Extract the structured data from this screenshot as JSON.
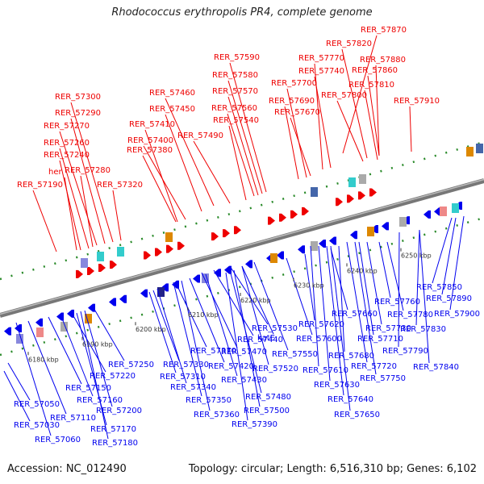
{
  "title": "Rhodococcus erythropolis PR4, complete genome",
  "footer": {
    "accession": "Accession: NC_012490",
    "summary": "Topology: circular; Length: 6,516,310 bp; Genes: 6,102"
  },
  "colors": {
    "forward": "#ee0000",
    "reverse": "#0000ee",
    "backbone": "#808080"
  },
  "ticks": [
    "6180 kbp",
    "6190 kbp",
    "6200 kbp",
    "6210 kbp",
    "6220 kbp",
    "6230 kbp",
    "6240 kbp",
    "6250 kbp"
  ],
  "forward_labels": [
    "RER_57870",
    "RER_57820",
    "RER_57880",
    "RER_57590",
    "RER_57770",
    "RER_57860",
    "RER_57580",
    "RER_57740",
    "RER_57700",
    "RER_57810",
    "RER_57570",
    "RER_57800",
    "RER_57460",
    "RER_57560",
    "RER_57690",
    "RER_57910",
    "RER_57300",
    "RER_57450",
    "RER_57540",
    "RER_57670",
    "RER_57290",
    "RER_57410",
    "RER_57270",
    "RER_57490",
    "RER_57400",
    "RER_57260",
    "RER_57380",
    "RER_57240",
    "RER_57280",
    "her",
    "RER_57190",
    "RER_57320"
  ],
  "reverse_labels": [
    "RER_57850",
    "RER_57890",
    "RER_57900",
    "RER_57760",
    "RER_57780",
    "RER_57660",
    "RER_57830",
    "RER_57620",
    "RER_57730",
    "RER_57710",
    "RER_57530",
    "RER_57790",
    "RER_57600",
    "RER_57370",
    "RER_57440",
    "katE",
    "RER_57550",
    "RER_57680",
    "RER_57250",
    "RER_57330",
    "RER_57470",
    "RER_57420",
    "RER_57610",
    "RER_57720",
    "RER_57840",
    "RER_57220",
    "RER_57310",
    "RER_57520",
    "RER_57630",
    "RER_57750",
    "RER_57340",
    "RER_57430",
    "RER_57150",
    "RER_57160",
    "RER_57480",
    "RER_57640",
    "RER_57350",
    "RER_57050",
    "RER_57200",
    "RER_57110",
    "RER_57500",
    "RER_57650",
    "RER_57360",
    "RER_57390",
    "RER_57030",
    "RER_57170",
    "RER_57060",
    "RER_57180"
  ]
}
